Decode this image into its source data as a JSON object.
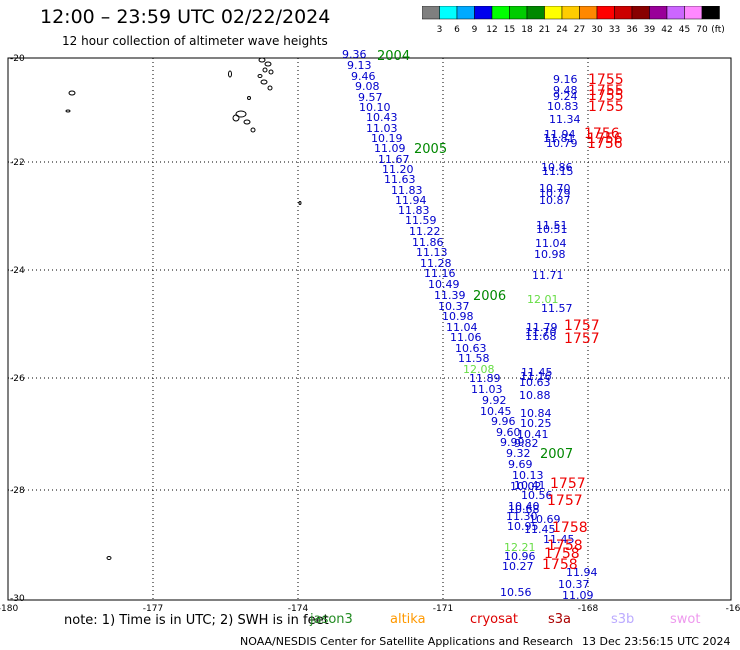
{
  "header": {
    "title": "12:00 – 23:59 UTC 02/22/2024",
    "subtitle": "12 hour collection of altimeter wave heights"
  },
  "legend": {
    "unit": "(ft)",
    "bins": [
      {
        "label": "3",
        "color": "#7f7f7f"
      },
      {
        "label": "6",
        "color": "#00ffff"
      },
      {
        "label": "9",
        "color": "#00aaff"
      },
      {
        "label": "12",
        "color": "#0000ee"
      },
      {
        "label": "15",
        "color": "#00ff00"
      },
      {
        "label": "18",
        "color": "#00cc00"
      },
      {
        "label": "21",
        "color": "#008800"
      },
      {
        "label": "24",
        "color": "#ffff00"
      },
      {
        "label": "27",
        "color": "#ffcc00"
      },
      {
        "label": "30",
        "color": "#ff8800"
      },
      {
        "label": "33",
        "color": "#ff0000"
      },
      {
        "label": "36",
        "color": "#cc0000"
      },
      {
        "label": "39",
        "color": "#880000"
      },
      {
        "label": "42",
        "color": "#990099"
      },
      {
        "label": "45",
        "color": "#cc66ff"
      },
      {
        "label": "70",
        "color": "#ff88ff"
      },
      {
        "label": "",
        "color": "#000000"
      }
    ]
  },
  "axes": {
    "x_ticks": [
      "-180",
      "-177",
      "-174",
      "-171",
      "-168",
      "-16"
    ],
    "y_ticks": [
      "-20",
      "-22",
      "-24",
      "-26",
      "-28",
      "-30"
    ]
  },
  "footer": {
    "note": "note:  1) Time is in UTC; 2) SWH is in feet",
    "credit": "NOAA/NESDIS Center for Satellite Applications and Research",
    "stamp": "13 Dec 23:56:15 UTC 2024"
  },
  "satellites": [
    {
      "name": "jason3",
      "color": "#228b22"
    },
    {
      "name": "altika",
      "color": "#ff9900"
    },
    {
      "name": "cryosat",
      "color": "#dd0000"
    },
    {
      "name": "s3a",
      "color": "#aa0000"
    },
    {
      "name": "s3b",
      "color": "#bbaaff"
    },
    {
      "name": "swot",
      "color": "#ee99ee"
    }
  ],
  "tracks": [
    {
      "id": "track-west",
      "color": "#0000cc",
      "values": [
        "9.36",
        "9.13",
        "9.46",
        "9.08",
        "9.57",
        "10.10",
        "10.43",
        "11.03",
        "10.19",
        "11.09",
        "11.67",
        "11.20",
        "11.63",
        "11.83",
        "11.94",
        "11.83",
        "11.59",
        "11.22",
        "11.86",
        "11.13",
        "11.28",
        "11.16",
        "10.49",
        "11.39",
        "10.37",
        "10.98",
        "11.04",
        "11.06",
        "10.63",
        "11.58",
        "11.89",
        "11.03",
        "9.92",
        "10.45",
        "9.96",
        "9.60",
        "9.99",
        "9.32",
        "9.69",
        "10.13",
        "10.41",
        "10.56",
        "10.40",
        "11.30",
        "10.95"
      ]
    },
    {
      "id": "track-east",
      "color": "#0000cc",
      "values": [
        "9.16",
        "9.48",
        "9.24",
        "10.83",
        "11.34",
        "11.94",
        "11.81",
        "10.79",
        "10.86",
        "11.15",
        "10.70",
        "10.79",
        "10.87",
        "11.51",
        "10.51",
        "11.04",
        "10.98",
        "11.71",
        "11.57",
        "11.79",
        "11.70",
        "11.68",
        "11.45",
        "11.16",
        "10.63",
        "10.88",
        "10.84",
        "10.25",
        "10.41",
        "9.82",
        "10.02",
        "10.68",
        "10.69",
        "11.45",
        "11.45",
        "10.96",
        "10.27",
        "10.56",
        "11.94",
        "10.37",
        "11.09"
      ]
    },
    {
      "id": "track-light",
      "color": "#66dd44",
      "values": [
        "12.01",
        "12.08",
        "12.21"
      ]
    },
    {
      "id": "time-labels-green",
      "color": "#008800",
      "values": [
        "2004",
        "2005",
        "2006",
        "2007"
      ]
    },
    {
      "id": "time-labels-red",
      "color": "#ee0000",
      "values": [
        "1755",
        "1755",
        "1755",
        "1755",
        "1756",
        "1756",
        "1756",
        "1757",
        "1757",
        "1757",
        "1757",
        "1758",
        "1758",
        "1758",
        "1758"
      ]
    }
  ]
}
